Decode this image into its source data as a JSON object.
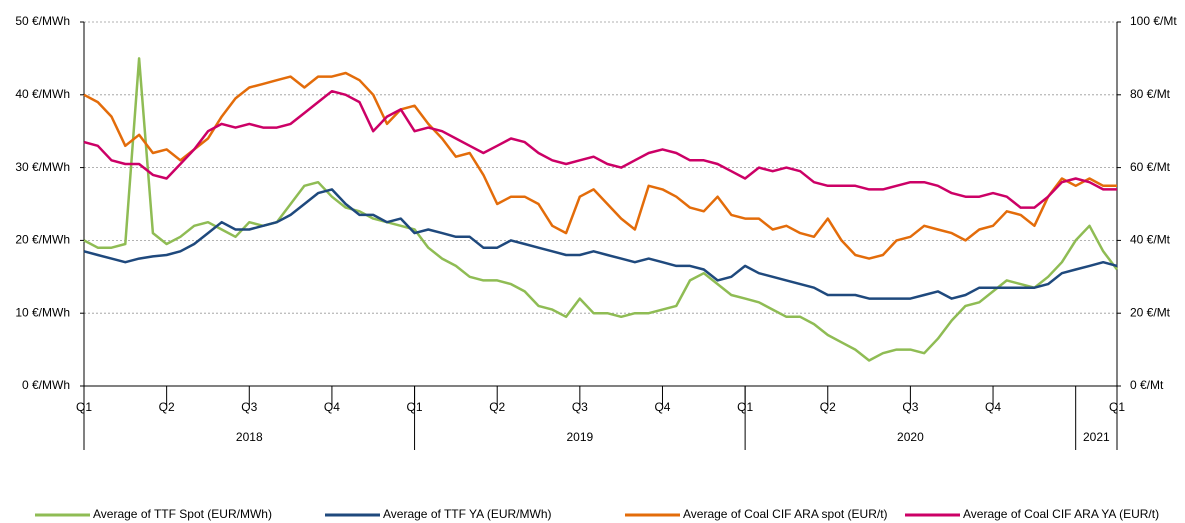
{
  "chart_data": {
    "type": "line",
    "categories": [
      "Q1",
      null,
      null,
      null,
      null,
      null,
      "Q2",
      null,
      null,
      null,
      null,
      null,
      "Q3",
      null,
      null,
      null,
      null,
      null,
      "Q4",
      null,
      null,
      null,
      null,
      null,
      "Q1",
      null,
      null,
      null,
      null,
      null,
      "Q2",
      null,
      null,
      null,
      null,
      null,
      "Q3",
      null,
      null,
      null,
      null,
      null,
      "Q4",
      null,
      null,
      null,
      null,
      null,
      "Q1",
      null,
      null,
      null,
      null,
      null,
      "Q2",
      null,
      null,
      null,
      null,
      null,
      "Q3",
      null,
      null,
      null,
      null,
      null,
      "Q4",
      null,
      null,
      null,
      null,
      null,
      null,
      null,
      null,
      "Q1"
    ],
    "years": [
      "2018",
      "2019",
      "2020",
      "2021"
    ],
    "ylim": [
      0,
      50
    ],
    "yticks": [
      {
        "value": 0,
        "label": "0 €/MWh"
      },
      {
        "value": 10,
        "label": "10 €/MWh"
      },
      {
        "value": 20,
        "label": "20 €/MWh"
      },
      {
        "value": 30,
        "label": "30 €/MWh"
      },
      {
        "value": 40,
        "label": "40 €/MWh"
      },
      {
        "value": 50,
        "label": "50 €/MWh"
      }
    ],
    "y2lim": [
      0,
      100
    ],
    "y2ticks": [
      {
        "value": 0,
        "label": "0 €/Mt"
      },
      {
        "value": 20,
        "label": "20 €/Mt"
      },
      {
        "value": 40,
        "label": "40 €/Mt"
      },
      {
        "value": 60,
        "label": "60 €/Mt"
      },
      {
        "value": 80,
        "label": "80 €/Mt"
      },
      {
        "value": 100,
        "label": "100 €/Mt"
      }
    ],
    "grid": true,
    "legend": "bottom",
    "series": [
      {
        "name": "Average of TTF Spot (EUR/MWh)",
        "color": "#8fbc54",
        "axis": "y",
        "values": [
          20,
          19,
          19,
          19.5,
          45,
          21,
          19.5,
          20.5,
          22,
          22.5,
          21.5,
          20.5,
          22.5,
          22,
          22.5,
          25,
          27.5,
          28,
          26,
          24.5,
          24,
          23,
          22.5,
          22,
          21.5,
          19,
          17.5,
          16.5,
          15,
          14.5,
          14.5,
          14,
          13,
          11,
          10.5,
          9.5,
          12,
          10,
          10,
          9.5,
          10,
          10,
          10.5,
          11,
          14.5,
          15.5,
          14,
          12.5,
          12,
          11.5,
          10.5,
          9.5,
          9.5,
          8.5,
          7,
          6,
          5,
          3.5,
          4.5,
          5,
          5,
          4.5,
          6.5,
          9,
          11,
          11.5,
          13,
          14.5,
          14,
          13.5,
          15,
          17,
          20,
          22,
          18.5,
          16
        ]
      },
      {
        "name": "Average of TTF YA (EUR/MWh)",
        "color": "#1f497d",
        "axis": "y",
        "values": [
          18.5,
          18,
          17.5,
          17,
          17.5,
          17.8,
          18,
          18.5,
          19.5,
          21,
          22.5,
          21.5,
          21.5,
          22,
          22.5,
          23.5,
          25,
          26.5,
          27,
          25,
          23.5,
          23.5,
          22.5,
          23,
          21,
          21.5,
          21,
          20.5,
          20.5,
          19,
          19,
          20,
          19.5,
          19,
          18.5,
          18,
          18,
          18.5,
          18,
          17.5,
          17,
          17.5,
          17,
          16.5,
          16.5,
          16,
          14.5,
          15,
          16.5,
          15.5,
          15,
          14.5,
          14,
          13.5,
          12.5,
          12.5,
          12.5,
          12,
          12,
          12,
          12,
          12.5,
          13,
          12,
          12.5,
          13.5,
          13.5,
          13.5,
          13.5,
          13.5,
          14,
          15.5,
          16,
          16.5,
          17,
          16.5
        ]
      },
      {
        "name": "Average of Coal CIF ARA spot (EUR/t)",
        "color": "#e36c0a",
        "axis": "y2",
        "values": [
          80,
          78,
          74,
          66,
          69,
          64,
          65,
          62,
          65,
          68,
          74,
          79,
          82,
          83,
          84,
          85,
          82,
          85,
          85,
          86,
          84,
          80,
          72,
          76,
          77,
          72,
          68,
          63,
          64,
          58,
          50,
          52,
          52,
          50,
          44,
          42,
          52,
          54,
          50,
          46,
          43,
          55,
          54,
          52,
          49,
          48,
          52,
          47,
          46,
          46,
          43,
          44,
          42,
          41,
          46,
          40,
          36,
          35,
          36,
          40,
          41,
          44,
          43,
          42,
          40,
          43,
          44,
          48,
          47,
          44,
          52,
          57,
          55,
          57,
          55,
          55
        ]
      },
      {
        "name": "Average of Coal CIF ARA YA (EUR/t)",
        "color": "#cc0066",
        "axis": "y2",
        "values": [
          67,
          66,
          62,
          61,
          61,
          58,
          57,
          61,
          65,
          70,
          72,
          71,
          72,
          71,
          71,
          72,
          75,
          78,
          81,
          80,
          78,
          70,
          74,
          76,
          70,
          71,
          70,
          68,
          66,
          64,
          66,
          68,
          67,
          64,
          62,
          61,
          62,
          63,
          61,
          60,
          62,
          64,
          65,
          64,
          62,
          62,
          61,
          59,
          57,
          60,
          59,
          60,
          59,
          56,
          55,
          55,
          55,
          54,
          54,
          55,
          56,
          56,
          55,
          53,
          52,
          52,
          53,
          52,
          49,
          49,
          52,
          56,
          57,
          56,
          54,
          54
        ]
      }
    ]
  }
}
